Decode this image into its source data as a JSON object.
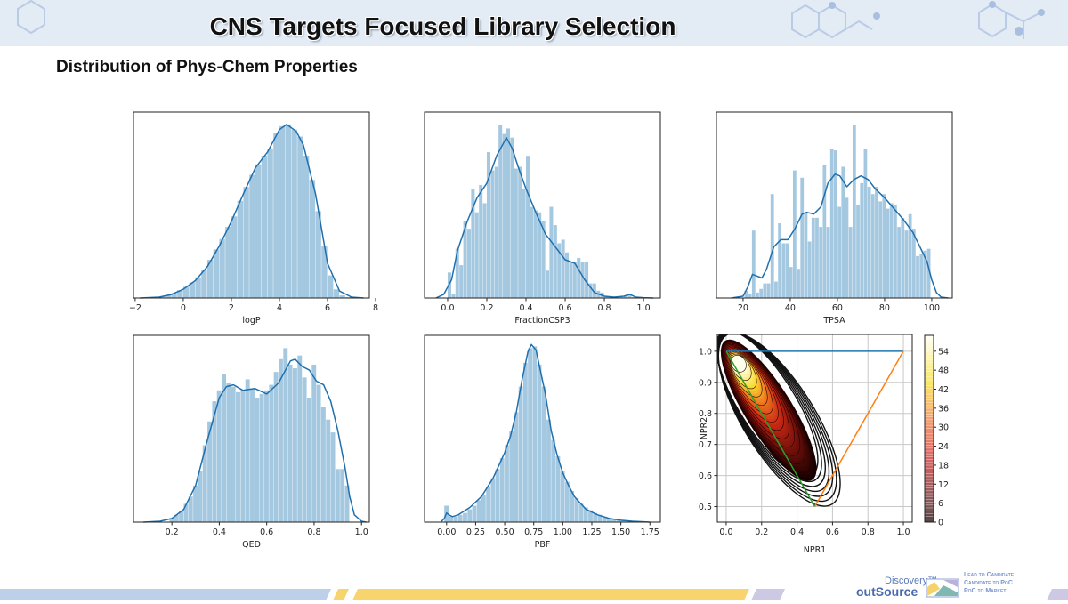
{
  "header": {
    "title": "CNS Targets Focused Library Selection"
  },
  "subtitle": "Distribution of Phys-Chem Properties",
  "footer": {
    "logo_discovery": "Discovery™",
    "logo_outsource": "outSource",
    "taglines": [
      "Lead to Candidate",
      "Candidate to PoC",
      "PoC to Market"
    ]
  },
  "colors": {
    "bar": "#a5c8e1",
    "kde": "#1f6fad",
    "header_band": "#e3ebf5",
    "line_blue": "#1f77b4",
    "line_orange": "#ff7f0e",
    "line_green": "#2ca02c"
  },
  "chart_data": [
    {
      "type": "histogram+kde",
      "xlabel": "logP",
      "xlim": [
        -2.07,
        7.74
      ],
      "ylim": [
        0,
        1.05
      ],
      "yaxis": "unlabeled (relative density)",
      "xticks": [
        -2,
        0,
        2,
        4,
        6,
        8
      ],
      "xtick_labels": [
        "−2",
        "0",
        "2",
        "4",
        "6",
        "8"
      ],
      "bins": {
        "start": -1.75,
        "width": 0.25,
        "heights": [
          0.003,
          0.004,
          0.005,
          0.008,
          0.015,
          0.028,
          0.045,
          0.065,
          0.09,
          0.12,
          0.16,
          0.22,
          0.28,
          0.34,
          0.41,
          0.47,
          0.56,
          0.64,
          0.71,
          0.77,
          0.82,
          0.86,
          0.95,
          0.99,
          1.0,
          0.97,
          0.93,
          0.82,
          0.68,
          0.5,
          0.3,
          0.13,
          0.05,
          0.015,
          0.005,
          0.002,
          0.001
        ]
      },
      "kde": {
        "x": [
          -1.8,
          -1,
          -0.5,
          0,
          0.5,
          1,
          1.5,
          2,
          2.5,
          3,
          3.5,
          4,
          4.3,
          4.7,
          5,
          5.5,
          6,
          6.5,
          7,
          7.5
        ],
        "y": [
          0,
          0.005,
          0.02,
          0.05,
          0.1,
          0.18,
          0.3,
          0.44,
          0.6,
          0.75,
          0.84,
          0.97,
          1.0,
          0.96,
          0.88,
          0.6,
          0.2,
          0.04,
          0.005,
          0
        ]
      }
    },
    {
      "type": "histogram+kde",
      "xlabel": "FractionCSP3",
      "xlim": [
        -0.118,
        1.086
      ],
      "ylim": [
        0,
        1.0
      ],
      "xticks": [
        0,
        0.2,
        0.4,
        0.6,
        0.8,
        1.0
      ],
      "xtick_labels": [
        "0.0",
        "0.2",
        "0.4",
        "0.6",
        "0.8",
        "1.0"
      ],
      "bins": {
        "start": 0.0,
        "width": 0.02,
        "heights": [
          0.14,
          0.02,
          0.27,
          0.18,
          0.42,
          0.38,
          0.6,
          0.47,
          0.62,
          0.52,
          0.8,
          0.7,
          0.72,
          0.95,
          0.9,
          0.93,
          0.88,
          0.71,
          0.72,
          0.6,
          0.78,
          0.5,
          0.48,
          0.47,
          0.42,
          0.15,
          0.5,
          0.4,
          0.3,
          0.32,
          0.25,
          0.2,
          0.2,
          0.22,
          0.2,
          0.2,
          0.08,
          0.08,
          0.04,
          0.03,
          0.01,
          0.005,
          0.005,
          0.005,
          0.005,
          0.01,
          0.02,
          0.005
        ]
      },
      "kde": {
        "x": [
          -0.06,
          -0.02,
          0,
          0.02,
          0.05,
          0.1,
          0.15,
          0.2,
          0.25,
          0.3,
          0.33,
          0.36,
          0.4,
          0.45,
          0.5,
          0.55,
          0.6,
          0.65,
          0.7,
          0.75,
          0.8,
          0.85,
          0.9,
          0.93,
          0.96,
          1.0,
          1.05
        ],
        "y": [
          0,
          0.02,
          0.06,
          0.1,
          0.26,
          0.42,
          0.55,
          0.63,
          0.78,
          0.88,
          0.82,
          0.72,
          0.6,
          0.47,
          0.35,
          0.28,
          0.21,
          0.19,
          0.1,
          0.03,
          0.01,
          0.005,
          0.01,
          0.02,
          0.005,
          0.002,
          0
        ]
      }
    },
    {
      "type": "histogram+kde",
      "xlabel": "TPSA",
      "xlim": [
        8.7,
        108.7
      ],
      "ylim": [
        0,
        1.0
      ],
      "xticks": [
        20,
        40,
        60,
        80,
        100
      ],
      "xtick_labels": [
        "20",
        "40",
        "60",
        "80",
        "100"
      ],
      "bins": {
        "start": 20.6,
        "width": 1.58,
        "heights": [
          0.04,
          0.02,
          0.37,
          0.03,
          0.05,
          0.08,
          0.08,
          0.57,
          0.09,
          0.41,
          0.3,
          0.3,
          0.17,
          0.7,
          0.16,
          0.66,
          0.47,
          0.31,
          0.44,
          0.44,
          0.39,
          0.73,
          0.39,
          0.82,
          0.81,
          0.5,
          0.72,
          0.55,
          0.39,
          0.95,
          0.51,
          0.63,
          0.82,
          0.61,
          0.57,
          0.61,
          0.53,
          0.57,
          0.49,
          0.52,
          0.51,
          0.39,
          0.44,
          0.37,
          0.46,
          0.38,
          0.23,
          0.24,
          0.26,
          0.27
        ]
      },
      "kde": {
        "x": [
          15,
          20,
          22,
          24,
          26,
          28,
          30,
          33,
          36,
          39,
          42,
          45,
          47,
          50,
          53,
          56,
          59,
          61,
          64,
          67,
          70,
          73,
          76,
          80,
          84,
          88,
          92,
          95,
          98,
          100,
          102,
          104,
          107
        ],
        "y": [
          0,
          0.01,
          0.06,
          0.13,
          0.12,
          0.11,
          0.16,
          0.28,
          0.32,
          0.32,
          0.38,
          0.46,
          0.47,
          0.46,
          0.5,
          0.63,
          0.68,
          0.67,
          0.61,
          0.65,
          0.67,
          0.65,
          0.6,
          0.55,
          0.49,
          0.43,
          0.36,
          0.28,
          0.2,
          0.1,
          0.03,
          0.005,
          0
        ]
      }
    },
    {
      "type": "histogram+kde",
      "xlabel": "QED",
      "xlim": [
        0.038,
        1.033
      ],
      "ylim": [
        0,
        1.0
      ],
      "xticks": [
        0.2,
        0.4,
        0.6,
        0.8,
        1.0
      ],
      "xtick_labels": [
        "0.2",
        "0.4",
        "0.6",
        "0.8",
        "1.0"
      ],
      "bins": {
        "start": 0.19,
        "width": 0.02,
        "heights": [
          0.02,
          0.04,
          0.06,
          0.1,
          0.14,
          0.2,
          0.28,
          0.42,
          0.55,
          0.66,
          0.72,
          0.81,
          0.76,
          0.74,
          0.71,
          0.72,
          0.78,
          0.73,
          0.68,
          0.7,
          0.72,
          0.75,
          0.82,
          0.89,
          0.95,
          0.86,
          0.84,
          0.91,
          0.79,
          0.68,
          0.86,
          0.75,
          0.63,
          0.56,
          0.49,
          0.29,
          0.29,
          0.2
        ]
      },
      "kde": {
        "x": [
          0.08,
          0.15,
          0.2,
          0.25,
          0.3,
          0.35,
          0.4,
          0.43,
          0.46,
          0.5,
          0.55,
          0.6,
          0.65,
          0.7,
          0.72,
          0.75,
          0.78,
          0.81,
          0.84,
          0.87,
          0.9,
          0.93,
          0.95,
          0.97,
          1.0,
          1.02
        ],
        "y": [
          0,
          0.005,
          0.02,
          0.07,
          0.2,
          0.45,
          0.68,
          0.74,
          0.75,
          0.72,
          0.73,
          0.7,
          0.76,
          0.88,
          0.89,
          0.85,
          0.83,
          0.77,
          0.75,
          0.66,
          0.5,
          0.3,
          0.14,
          0.04,
          0.005,
          0
        ]
      }
    },
    {
      "type": "histogram+kde",
      "xlabel": "PBF",
      "xlim": [
        -0.19,
        1.84
      ],
      "ylim": [
        0,
        1.0
      ],
      "xticks": [
        0,
        0.25,
        0.5,
        0.75,
        1.0,
        1.25,
        1.5,
        1.75
      ],
      "xtick_labels": [
        "0.00",
        "0.25",
        "0.50",
        "0.75",
        "1.00",
        "1.25",
        "1.50",
        "1.75"
      ],
      "bins": {
        "start": -0.02,
        "width": 0.04,
        "heights": [
          0.09,
          0.03,
          0.03,
          0.04,
          0.05,
          0.07,
          0.09,
          0.12,
          0.15,
          0.19,
          0.24,
          0.29,
          0.35,
          0.42,
          0.5,
          0.6,
          0.74,
          0.87,
          0.95,
          0.96,
          0.86,
          0.74,
          0.56,
          0.45,
          0.36,
          0.28,
          0.22,
          0.17,
          0.13,
          0.1,
          0.08,
          0.065,
          0.05,
          0.04,
          0.03,
          0.02,
          0.015,
          0.01,
          0.007,
          0.005,
          0.003,
          0.002,
          0.001,
          0.001
        ]
      },
      "kde": {
        "x": [
          -0.05,
          -0.02,
          0,
          0.02,
          0.05,
          0.1,
          0.2,
          0.3,
          0.4,
          0.5,
          0.55,
          0.6,
          0.65,
          0.7,
          0.73,
          0.77,
          0.8,
          0.85,
          0.9,
          0.95,
          1.0,
          1.05,
          1.1,
          1.2,
          1.3,
          1.4,
          1.5,
          1.6,
          1.75
        ],
        "y": [
          0,
          0.02,
          0.05,
          0.04,
          0.03,
          0.04,
          0.08,
          0.14,
          0.24,
          0.38,
          0.47,
          0.6,
          0.78,
          0.93,
          0.97,
          0.94,
          0.85,
          0.7,
          0.5,
          0.37,
          0.27,
          0.2,
          0.14,
          0.07,
          0.04,
          0.02,
          0.01,
          0.005,
          0
        ]
      }
    },
    {
      "type": "kde-contour",
      "xlabel": "NPR1",
      "ylabel": "NPR2",
      "xlim": [
        -0.05,
        1.05
      ],
      "ylim": [
        0.45,
        1.054
      ],
      "grid": true,
      "xticks": [
        0,
        0.2,
        0.4,
        0.6,
        0.8,
        1.0
      ],
      "xtick_labels": [
        "0.0",
        "0.2",
        "0.4",
        "0.6",
        "0.8",
        "1.0"
      ],
      "yticks": [
        0.5,
        0.6,
        0.7,
        0.8,
        0.9,
        1.0
      ],
      "ytick_labels": [
        "0.5",
        "0.6",
        "0.7",
        "0.8",
        "0.9",
        "1.0"
      ],
      "density_peak": [
        0.07,
        0.96
      ],
      "density_extent_npr1": [
        0.0,
        0.58
      ],
      "density_extent_npr2": [
        0.55,
        1.02
      ],
      "colormap": "hot",
      "triangle": [
        {
          "from": [
            0,
            1
          ],
          "to": [
            1,
            1
          ],
          "color": "#1f77b4"
        },
        {
          "from": [
            0.5,
            0.5
          ],
          "to": [
            1,
            1
          ],
          "color": "#ff7f0e"
        },
        {
          "from": [
            0,
            1
          ],
          "to": [
            0.5,
            0.5
          ],
          "color": "#2ca02c"
        }
      ],
      "colorbar": {
        "range": [
          0,
          59
        ],
        "ticks": [
          0,
          6,
          12,
          18,
          24,
          30,
          36,
          42,
          48,
          54
        ],
        "tick_labels": [
          "0",
          "6",
          "12",
          "18",
          "24",
          "30",
          "36",
          "42",
          "48",
          "54"
        ]
      }
    }
  ]
}
